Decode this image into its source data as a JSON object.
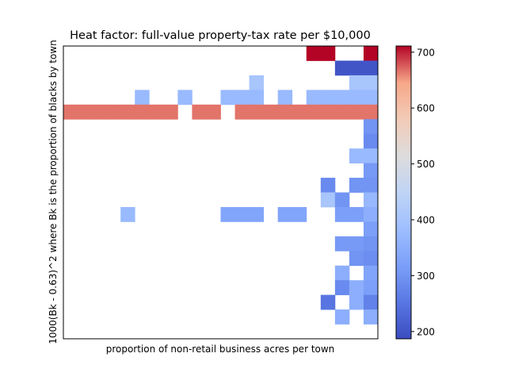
{
  "chart_data": {
    "type": "heatmap",
    "title": "Heat factor: full-value property-tax rate per $10,000",
    "xlabel": "proportion of non-retail business acres per town",
    "ylabel": "1000(Bk - 0.63)^2 where Bk is the proportion of blacks by town",
    "n_cols": 22,
    "n_rows": 20,
    "value_range": [
      187,
      711
    ],
    "colormap": "coolwarm",
    "colorbar_ticks": [
      200,
      300,
      400,
      500,
      600,
      700
    ],
    "cells": [
      [
        0,
        17,
        711
      ],
      [
        0,
        18,
        711
      ],
      [
        0,
        21,
        711
      ],
      [
        1,
        19,
        200
      ],
      [
        1,
        20,
        200
      ],
      [
        1,
        21,
        200
      ],
      [
        2,
        13,
        403
      ],
      [
        2,
        20,
        403
      ],
      [
        2,
        21,
        403
      ],
      [
        3,
        5,
        375
      ],
      [
        3,
        8,
        375
      ],
      [
        3,
        11,
        375
      ],
      [
        3,
        12,
        375
      ],
      [
        3,
        13,
        375
      ],
      [
        3,
        15,
        375
      ],
      [
        3,
        17,
        375
      ],
      [
        3,
        18,
        375
      ],
      [
        3,
        19,
        375
      ],
      [
        3,
        20,
        375
      ],
      [
        3,
        21,
        375
      ],
      [
        4,
        0,
        666
      ],
      [
        4,
        1,
        666
      ],
      [
        4,
        2,
        666
      ],
      [
        4,
        3,
        666
      ],
      [
        4,
        4,
        666
      ],
      [
        4,
        5,
        666
      ],
      [
        4,
        6,
        666
      ],
      [
        4,
        7,
        666
      ],
      [
        4,
        9,
        666
      ],
      [
        4,
        10,
        666
      ],
      [
        4,
        12,
        666
      ],
      [
        4,
        13,
        666
      ],
      [
        4,
        14,
        666
      ],
      [
        4,
        15,
        666
      ],
      [
        4,
        16,
        666
      ],
      [
        4,
        17,
        666
      ],
      [
        4,
        18,
        666
      ],
      [
        4,
        19,
        666
      ],
      [
        4,
        20,
        666
      ],
      [
        4,
        21,
        666
      ],
      [
        5,
        21,
        300
      ],
      [
        6,
        21,
        284
      ],
      [
        7,
        20,
        375
      ],
      [
        7,
        21,
        375
      ],
      [
        8,
        21,
        310
      ],
      [
        9,
        18,
        284
      ],
      [
        9,
        20,
        300
      ],
      [
        9,
        21,
        300
      ],
      [
        10,
        18,
        403
      ],
      [
        10,
        19,
        300
      ],
      [
        10,
        21,
        370
      ],
      [
        11,
        4,
        375
      ],
      [
        11,
        11,
        330
      ],
      [
        11,
        12,
        330
      ],
      [
        11,
        13,
        330
      ],
      [
        11,
        15,
        330
      ],
      [
        11,
        16,
        330
      ],
      [
        11,
        19,
        320
      ],
      [
        11,
        20,
        320
      ],
      [
        11,
        21,
        350
      ],
      [
        12,
        21,
        320
      ],
      [
        13,
        19,
        310
      ],
      [
        13,
        20,
        310
      ],
      [
        13,
        21,
        300
      ],
      [
        14,
        20,
        300
      ],
      [
        14,
        21,
        290
      ],
      [
        15,
        19,
        350
      ],
      [
        15,
        21,
        330
      ],
      [
        16,
        19,
        284
      ],
      [
        16,
        20,
        350
      ],
      [
        16,
        21,
        320
      ],
      [
        17,
        18,
        250
      ],
      [
        17,
        20,
        350
      ],
      [
        17,
        21,
        270
      ],
      [
        18,
        19,
        350
      ],
      [
        18,
        21,
        350
      ]
    ]
  }
}
